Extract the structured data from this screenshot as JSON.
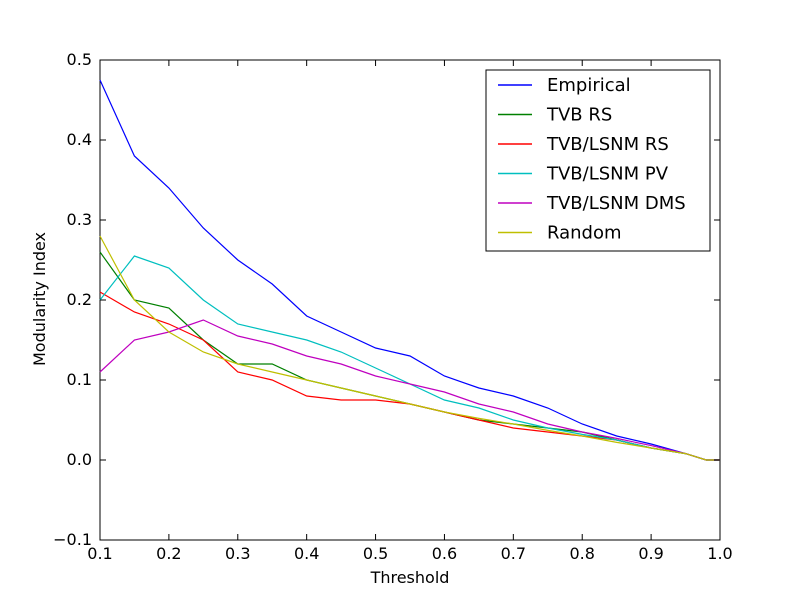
{
  "chart_data": {
    "type": "line",
    "title": "",
    "xlabel": "Threshold",
    "ylabel": "Modularity Index",
    "xlim": [
      0.1,
      1.0
    ],
    "ylim": [
      -0.1,
      0.5
    ],
    "xticks": [
      "0.1",
      "0.2",
      "0.3",
      "0.4",
      "0.5",
      "0.6",
      "0.7",
      "0.8",
      "0.9",
      "1.0"
    ],
    "yticks": [
      "−0.1",
      "0.0",
      "0.1",
      "0.2",
      "0.3",
      "0.4",
      "0.5"
    ],
    "grid": false,
    "legend_position": "top-right",
    "x": [
      0.1,
      0.15,
      0.2,
      0.25,
      0.3,
      0.35,
      0.4,
      0.45,
      0.5,
      0.55,
      0.6,
      0.65,
      0.7,
      0.75,
      0.8,
      0.85,
      0.9,
      0.95,
      0.98,
      1.0
    ],
    "series": [
      {
        "name": "Empirical",
        "color": "#0000ff",
        "values": [
          0.475,
          0.38,
          0.34,
          0.29,
          0.25,
          0.22,
          0.18,
          0.16,
          0.14,
          0.13,
          0.105,
          0.09,
          0.08,
          0.065,
          0.045,
          0.03,
          0.02,
          0.008,
          0.0,
          0.0
        ]
      },
      {
        "name": "TVB RS",
        "color": "#008000",
        "values": [
          0.26,
          0.2,
          0.19,
          0.15,
          0.12,
          0.12,
          0.1,
          0.09,
          0.08,
          0.07,
          0.06,
          0.05,
          0.045,
          0.04,
          0.035,
          0.025,
          0.015,
          0.008,
          0.0,
          0.0
        ]
      },
      {
        "name": "TVB/LSNM RS",
        "color": "#ff0000",
        "values": [
          0.21,
          0.185,
          0.17,
          0.15,
          0.11,
          0.1,
          0.08,
          0.075,
          0.075,
          0.07,
          0.06,
          0.05,
          0.04,
          0.035,
          0.03,
          0.025,
          0.015,
          0.008,
          0.0,
          0.0
        ]
      },
      {
        "name": "TVB/LSNM PV",
        "color": "#00bfbf",
        "values": [
          0.2,
          0.255,
          0.24,
          0.2,
          0.17,
          0.16,
          0.15,
          0.135,
          0.115,
          0.095,
          0.075,
          0.065,
          0.05,
          0.04,
          0.032,
          0.025,
          0.015,
          0.008,
          0.0,
          0.0
        ]
      },
      {
        "name": "TVB/LSNM DMS",
        "color": "#bf00bf",
        "values": [
          0.11,
          0.15,
          0.16,
          0.175,
          0.155,
          0.145,
          0.13,
          0.12,
          0.105,
          0.095,
          0.085,
          0.07,
          0.06,
          0.045,
          0.035,
          0.027,
          0.018,
          0.008,
          0.0,
          0.0
        ]
      },
      {
        "name": "Random",
        "color": "#bfbf00",
        "values": [
          0.28,
          0.2,
          0.16,
          0.135,
          0.12,
          0.11,
          0.1,
          0.09,
          0.08,
          0.07,
          0.06,
          0.052,
          0.045,
          0.037,
          0.03,
          0.022,
          0.015,
          0.008,
          0.0,
          0.0
        ]
      }
    ]
  }
}
